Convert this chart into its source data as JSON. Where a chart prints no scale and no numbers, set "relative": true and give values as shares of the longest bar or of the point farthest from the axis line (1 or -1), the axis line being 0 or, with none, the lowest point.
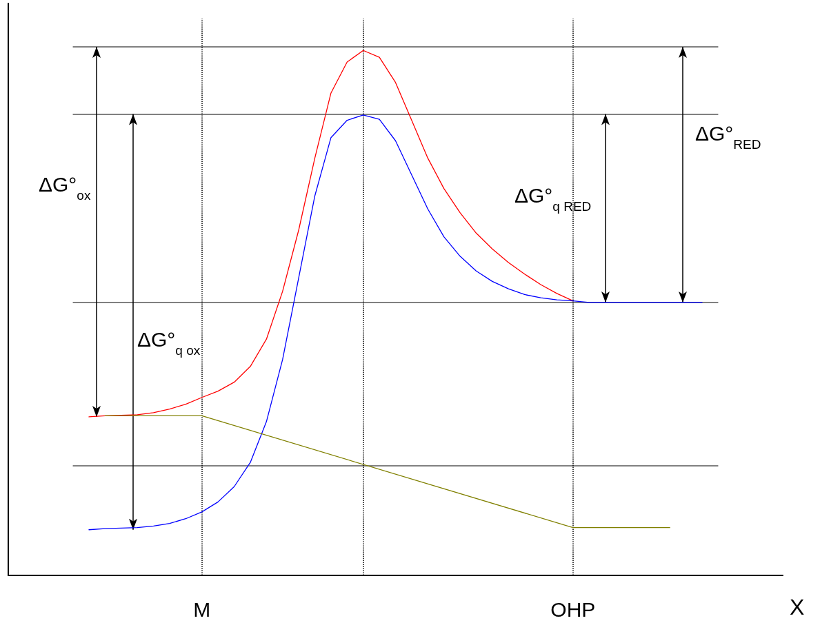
{
  "chart_data": {
    "type": "line",
    "relative": true,
    "xlabel": "X",
    "marker": "none",
    "line_style": "solid",
    "categories": [
      null,
      null,
      null,
      null,
      null,
      null,
      null,
      null,
      null,
      null,
      null,
      null,
      "M",
      null,
      null,
      null,
      null,
      null,
      null,
      null,
      null,
      null,
      null,
      null,
      null,
      null,
      null,
      null,
      null,
      null,
      null,
      null,
      null,
      null,
      null,
      "OHP",
      null,
      null,
      null,
      null,
      null,
      null,
      null,
      null,
      null,
      null,
      null,
      null,
      null
    ],
    "series": [
      {
        "color": "#ff0000",
        "values": [
          null,
          null,
          null,
          null,
          null,
          0.302,
          0.304,
          0.305,
          0.306,
          0.31,
          0.317,
          0.326,
          0.339,
          0.351,
          0.368,
          0.398,
          0.45,
          0.541,
          0.658,
          0.795,
          0.919,
          0.978,
          1.0,
          0.987,
          0.939,
          0.867,
          0.795,
          0.737,
          0.691,
          0.652,
          0.622,
          0.596,
          0.574,
          0.554,
          0.537,
          0.523,
          null,
          null,
          null,
          null,
          null,
          null,
          null,
          null,
          null,
          null,
          null,
          null,
          null
        ]
      },
      {
        "color": "#0000ff",
        "values": [
          null,
          null,
          null,
          null,
          null,
          0.087,
          0.089,
          0.09,
          0.091,
          0.094,
          0.099,
          0.108,
          0.121,
          0.14,
          0.169,
          0.215,
          0.293,
          0.411,
          0.567,
          0.723,
          0.834,
          0.867,
          0.877,
          0.869,
          0.828,
          0.763,
          0.698,
          0.645,
          0.608,
          0.58,
          0.56,
          0.546,
          0.535,
          0.529,
          0.525,
          0.523,
          0.52,
          0.52,
          0.52,
          0.52,
          0.52,
          0.52,
          0.52,
          0.52,
          null,
          null,
          null,
          null,
          null
        ]
      },
      {
        "color": "#808000",
        "values": [
          null,
          null,
          null,
          null,
          null,
          null,
          0.304,
          null,
          null,
          null,
          null,
          null,
          0.304,
          null,
          null,
          null,
          null,
          null,
          null,
          null,
          null,
          null,
          null,
          null,
          null,
          null,
          null,
          null,
          null,
          null,
          null,
          null,
          null,
          null,
          null,
          0.091,
          null,
          null,
          null,
          null,
          null,
          0.091,
          null,
          null,
          null,
          null,
          null,
          null,
          null
        ]
      }
    ],
    "ref_lines": [
      {
        "axis": "y",
        "value": 1.007,
        "color": "#808080",
        "line_style": "solid"
      },
      {
        "axis": "y",
        "value": 0.879,
        "color": "#808080",
        "line_style": "solid"
      },
      {
        "axis": "y",
        "value": 0.52,
        "color": "#808080",
        "line_style": "solid"
      },
      {
        "axis": "y",
        "value": 0.209,
        "color": "#808080",
        "line_style": "solid"
      },
      {
        "axis": "x",
        "value": "M",
        "color": "#000000",
        "line_style": "dotted"
      },
      {
        "axis": "x",
        "color": "#000000",
        "line_style": "dotted"
      },
      {
        "axis": "x",
        "value": "OHP",
        "color": "#000000",
        "line_style": "dotted"
      }
    ],
    "annotations": [
      "ΔG°$_{ox}$",
      "ΔG°$_{q ox}$",
      "ΔG°$_{q RED}$",
      "ΔG°$_{RED}$"
    ]
  }
}
